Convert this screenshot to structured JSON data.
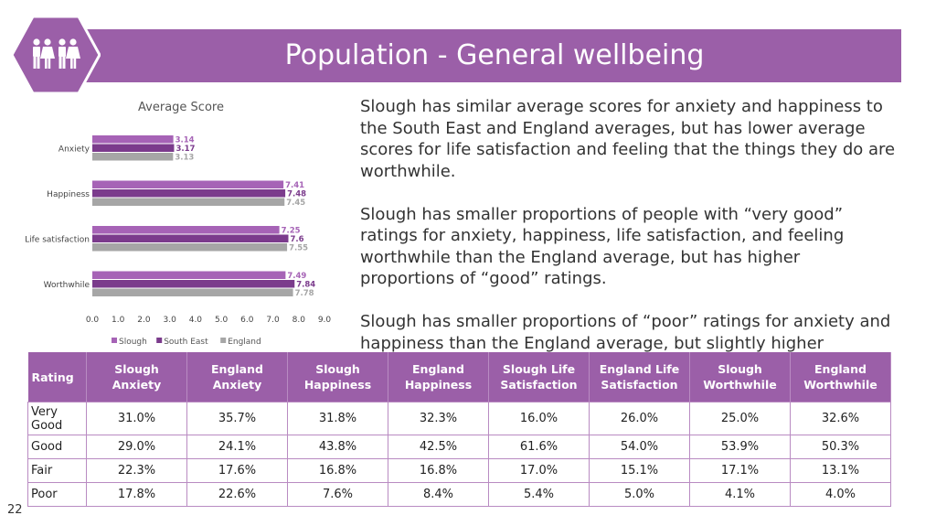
{
  "header": {
    "title": "Population - General wellbeing",
    "icon": "people-group-icon",
    "accent_color": "#9b5fa8"
  },
  "chart_data": {
    "type": "bar",
    "orientation": "horizontal",
    "title": "Average Score",
    "categories": [
      "Anxiety",
      "Happiness",
      "Life satisfaction",
      "Worthwhile"
    ],
    "series": [
      {
        "name": "Slough",
        "color": "#a663b6",
        "values": [
          3.14,
          7.41,
          7.25,
          7.49
        ],
        "labels": [
          "3.14",
          "7.41",
          "7.25",
          "7.49"
        ]
      },
      {
        "name": "South East",
        "color": "#7b3b8c",
        "values": [
          3.17,
          7.48,
          7.6,
          7.84
        ],
        "labels": [
          "3.17",
          "7.48",
          "7.6",
          "7.84"
        ]
      },
      {
        "name": "England",
        "color": "#a6a6a6",
        "values": [
          3.13,
          7.45,
          7.55,
          7.78
        ],
        "labels": [
          "3.13",
          "7.45",
          "7.55",
          "7.78"
        ]
      }
    ],
    "xlim": [
      0,
      9
    ],
    "xticks": [
      "0.0",
      "1.0",
      "2.0",
      "3.0",
      "4.0",
      "5.0",
      "6.0",
      "7.0",
      "8.0",
      "9.0"
    ],
    "legend_position": "bottom",
    "grid": false
  },
  "paragraphs": [
    "Slough has similar average scores for anxiety and happiness to the South East and England averages, but has lower average scores for life satisfaction and feeling that the things they do are worthwhile.",
    "Slough has smaller proportions of people with “very good” ratings for anxiety, happiness, life satisfaction, and feeling worthwhile than the England average, but has higher proportions of “good” ratings.",
    "Slough has smaller proportions of “poor” ratings for anxiety and happiness than the England average, but slightly higher"
  ],
  "table": {
    "headers": [
      "Rating",
      "Slough Anxiety",
      "England Anxiety",
      "Slough Happiness",
      "England Happiness",
      "Slough Life Satisfaction",
      "England Life Satisfaction",
      "Slough Worthwhile",
      "England Worthwhile"
    ],
    "rows": [
      [
        "Very Good",
        "31.0%",
        "35.7%",
        "31.8%",
        "32.3%",
        "16.0%",
        "26.0%",
        "25.0%",
        "32.6%"
      ],
      [
        "Good",
        "29.0%",
        "24.1%",
        "43.8%",
        "42.5%",
        "61.6%",
        "54.0%",
        "53.9%",
        "50.3%"
      ],
      [
        "Fair",
        "22.3%",
        "17.6%",
        "16.8%",
        "16.8%",
        "17.0%",
        "15.1%",
        "17.1%",
        "13.1%"
      ],
      [
        "Poor",
        "17.8%",
        "22.6%",
        "7.6%",
        "8.4%",
        "5.4%",
        "5.0%",
        "4.1%",
        "4.0%"
      ]
    ]
  },
  "page_number": "22"
}
